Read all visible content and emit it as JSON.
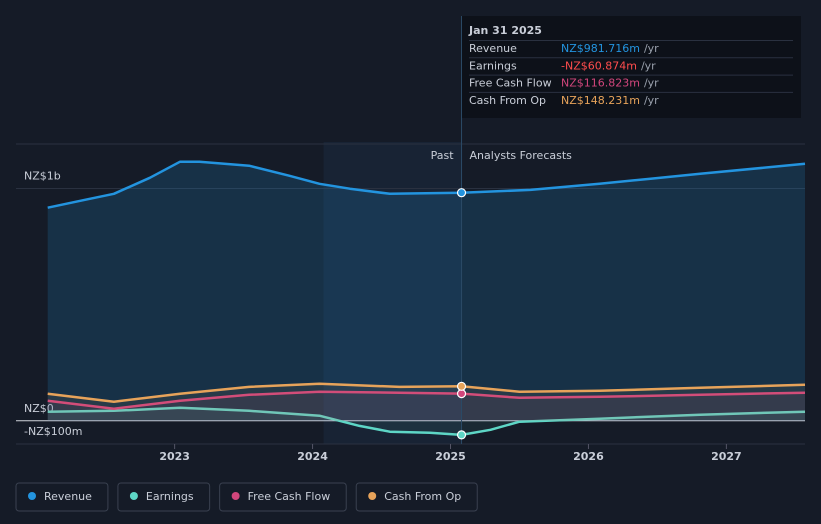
{
  "chart_data": {
    "type": "line",
    "xlim": [
      2021.85,
      2027.57
    ],
    "xticks": [
      2023,
      2024,
      2025,
      2026,
      2027
    ],
    "ylim": [
      -100,
      1200
    ],
    "yticks": [
      {
        "value": -100,
        "label": "-NZ$100m"
      },
      {
        "value": 0,
        "label": "NZ$0"
      },
      {
        "value": 1000,
        "label": "NZ$1b"
      }
    ],
    "grid": true,
    "annotations": {
      "past": "Past",
      "forecast": "Analysts Forecasts"
    },
    "series": [
      {
        "name": "Revenue",
        "color": "#2394df",
        "x": [
          2022.08,
          2022.35,
          2022.56,
          2022.82,
          2023.04,
          2023.18,
          2023.54,
          2023.83,
          2024.05,
          2024.27,
          2024.56,
          2025.08,
          2025.58,
          2026.08,
          2026.45,
          2026.81,
          2027.57
        ],
        "values": [
          917,
          951,
          977,
          1046,
          1115,
          1115,
          1098,
          1055,
          1020,
          999,
          977,
          981.716,
          994,
          1020,
          1042,
          1063,
          1106
        ]
      },
      {
        "name": "Earnings",
        "color": "#5ed6c6",
        "x": [
          2022.08,
          2022.56,
          2023.04,
          2023.54,
          2024.05,
          2024.34,
          2024.56,
          2024.85,
          2025.08,
          2025.29,
          2025.5,
          2026.08,
          2026.81,
          2027.57
        ],
        "values": [
          39,
          43,
          56,
          43,
          22,
          -22,
          -47,
          -52,
          -60.874,
          -39,
          -4,
          9,
          26,
          39
        ]
      },
      {
        "name": "Free Cash Flow",
        "color": "#d1467c",
        "x": [
          2022.08,
          2022.56,
          2023.04,
          2023.54,
          2024.05,
          2024.63,
          2025.08,
          2025.5,
          2026.08,
          2026.81,
          2027.57
        ],
        "values": [
          86,
          52,
          86,
          112,
          125,
          121,
          116.823,
          99,
          103,
          112,
          121
        ]
      },
      {
        "name": "Cash From Op",
        "color": "#e7a35a",
        "x": [
          2022.08,
          2022.56,
          2023.04,
          2023.54,
          2024.05,
          2024.63,
          2025.08,
          2025.5,
          2026.08,
          2026.81,
          2027.57
        ],
        "values": [
          116,
          82,
          116,
          146,
          159,
          146,
          148.231,
          125,
          129,
          142,
          155
        ]
      }
    ],
    "tooltip": {
      "date": "Jan 31 2025",
      "unit": "/yr",
      "value_labels": [
        "NZ$981.716m",
        "-NZ$60.874m",
        "NZ$116.823m",
        "NZ$148.231m"
      ],
      "value_colors": [
        "#2394df",
        "#ff4d4d",
        "#d1467c",
        "#e7a35a"
      ]
    }
  }
}
